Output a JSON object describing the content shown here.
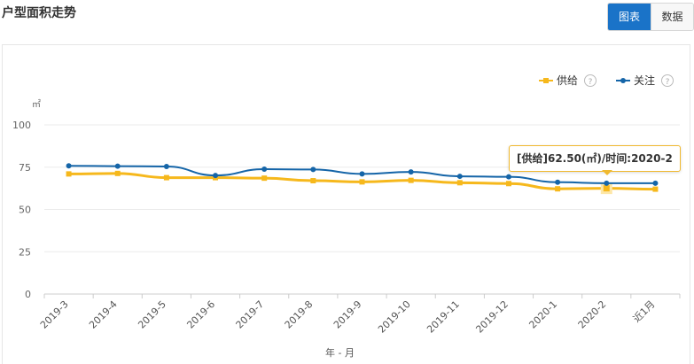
{
  "header": {
    "title": "户型面积走势"
  },
  "view_toggle": {
    "chart_label": "图表",
    "data_label": "数据"
  },
  "legend": {
    "help_glyph": "?",
    "items": [
      {
        "name": "供给",
        "color": "#f6b81c"
      },
      {
        "name": "关注",
        "color": "#1565a8"
      }
    ]
  },
  "tooltip": {
    "text": "[供给]62.50(㎡)/时间:2020-2"
  },
  "chart_data": {
    "type": "line",
    "title": "",
    "xlabel": "年 - 月",
    "ylabel": "㎡",
    "ylim": [
      0,
      100
    ],
    "yticks": [
      0,
      25,
      50,
      75,
      100
    ],
    "categories": [
      "2019-3",
      "2019-4",
      "2019-5",
      "2019-6",
      "2019-7",
      "2019-8",
      "2019-9",
      "2019-10",
      "2019-11",
      "2019-12",
      "2020-1",
      "2020-2",
      "近1月"
    ],
    "series": [
      {
        "name": "供给",
        "color": "#f6b81c",
        "values": [
          71.0,
          71.3,
          68.8,
          68.8,
          68.5,
          67.0,
          66.3,
          67.2,
          65.8,
          65.3,
          62.2,
          62.5,
          62.0
        ]
      },
      {
        "name": "关注",
        "color": "#1565a8",
        "values": [
          75.8,
          75.6,
          75.4,
          70.1,
          73.8,
          73.6,
          71.0,
          72.2,
          69.6,
          69.3,
          66.1,
          65.5,
          65.5
        ]
      }
    ],
    "legend_position": "top-right",
    "grid": true
  }
}
